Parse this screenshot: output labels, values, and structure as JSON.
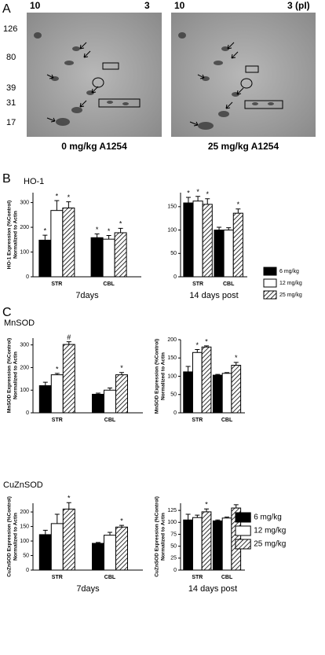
{
  "panel_labels": [
    "A",
    "B",
    "C"
  ],
  "gel": {
    "pi_labels": [
      "10",
      "3",
      "10",
      "3 (pI)"
    ],
    "mw_labels": [
      "126",
      "80",
      "39",
      "31",
      "17"
    ],
    "captions": [
      "0 mg/kg A1254",
      "25 mg/kg A1254"
    ]
  },
  "chart_data": [
    {
      "type": "bar",
      "title": "HO-1",
      "ylabel": [
        "HO-1 Expression (%Control)",
        "Normalized to Actin"
      ],
      "xlabel": "7days",
      "categories": [
        "STR",
        "CBL"
      ],
      "ylim": [
        0,
        340
      ],
      "yticks": [
        0,
        100,
        200,
        300
      ],
      "series": [
        {
          "name": "6 mg/kg",
          "color": "#000000",
          "values": [
            148,
            158
          ],
          "errors": [
            20,
            15
          ],
          "sig": [
            "*",
            "*"
          ]
        },
        {
          "name": "12 mg/kg",
          "color": "#ffffff",
          "values": [
            268,
            152
          ],
          "errors": [
            40,
            15
          ],
          "sig": [
            "*",
            "*"
          ]
        },
        {
          "name": "25 mg/kg",
          "color": "#ffffff",
          "hatch": true,
          "values": [
            278,
            178
          ],
          "errors": [
            25,
            18
          ],
          "sig": [
            "*",
            "*"
          ]
        }
      ]
    },
    {
      "type": "bar",
      "xlabel": "14 days post",
      "legend": true,
      "categories": [
        "STR",
        "CBL"
      ],
      "ylim": [
        0,
        180
      ],
      "yticks": [
        0,
        50,
        100,
        150
      ],
      "series": [
        {
          "name": "6 mg/kg",
          "color": "#000000",
          "values": [
            158,
            100
          ],
          "errors": [
            12,
            6
          ],
          "sig": [
            "*",
            null
          ]
        },
        {
          "name": "12 mg/kg",
          "color": "#ffffff",
          "values": [
            162,
            100
          ],
          "errors": [
            10,
            5
          ],
          "sig": [
            "*",
            null
          ]
        },
        {
          "name": "25 mg/kg",
          "color": "#ffffff",
          "hatch": true,
          "values": [
            155,
            136
          ],
          "errors": [
            12,
            9
          ],
          "sig": [
            "*",
            "*"
          ]
        }
      ]
    },
    {
      "type": "bar",
      "title": "MnSOD",
      "ylabel": [
        "MnSOD Expression (%Control)",
        "Normalized to Actin"
      ],
      "categories": [
        "STR",
        "CBL"
      ],
      "ylim": [
        0,
        330
      ],
      "yticks": [
        0,
        100,
        200,
        300
      ],
      "series": [
        {
          "name": "6 mg/kg",
          "color": "#000000",
          "values": [
            120,
            82
          ],
          "errors": [
            15,
            5
          ],
          "sig": [
            null,
            null
          ]
        },
        {
          "name": "12 mg/kg",
          "color": "#ffffff",
          "values": [
            168,
            100
          ],
          "errors": [
            6,
            10
          ],
          "sig": [
            "*",
            null
          ]
        },
        {
          "name": "25 mg/kg",
          "color": "#ffffff",
          "hatch": true,
          "values": [
            302,
            168
          ],
          "errors": [
            12,
            10
          ],
          "sig": [
            "#",
            "*"
          ]
        }
      ]
    },
    {
      "type": "bar",
      "ylabel": [
        "MnSOD Expression (%Control)",
        "Normalized to Actin"
      ],
      "categories": [
        "STR",
        "CBL"
      ],
      "ylim": [
        0,
        200
      ],
      "yticks": [
        0,
        50,
        100,
        150,
        200
      ],
      "series": [
        {
          "name": "6 mg/kg",
          "color": "#000000",
          "values": [
            112,
            103
          ],
          "errors": [
            15,
            2
          ],
          "sig": [
            null,
            null
          ]
        },
        {
          "name": "12 mg/kg",
          "color": "#ffffff",
          "values": [
            165,
            108
          ],
          "errors": [
            8,
            2
          ],
          "sig": [
            "*",
            null
          ]
        },
        {
          "name": "25 mg/kg",
          "color": "#ffffff",
          "hatch": true,
          "values": [
            180,
            130
          ],
          "errors": [
            3,
            8
          ],
          "sig": [
            "*",
            "*"
          ]
        }
      ]
    },
    {
      "type": "bar",
      "title": "CuZnSOD",
      "ylabel": [
        "CuZnSOD Expression (%Control)",
        "Normalized to Actin"
      ],
      "xlabel": "7days",
      "categories": [
        "STR",
        "CBL"
      ],
      "ylim": [
        0,
        230
      ],
      "yticks": [
        0,
        50,
        100,
        150,
        200
      ],
      "series": [
        {
          "name": "6 mg/kg",
          "color": "#000000",
          "values": [
            122,
            92
          ],
          "errors": [
            15,
            3
          ],
          "sig": [
            null,
            null
          ]
        },
        {
          "name": "12 mg/kg",
          "color": "#ffffff",
          "values": [
            160,
            120
          ],
          "errors": [
            32,
            10
          ],
          "sig": [
            null,
            null
          ]
        },
        {
          "name": "25 mg/kg",
          "color": "#ffffff",
          "hatch": true,
          "values": [
            210,
            148
          ],
          "errors": [
            22,
            6
          ],
          "sig": [
            "*",
            "*"
          ]
        }
      ]
    },
    {
      "type": "bar",
      "ylabel": [
        "CuZnSOD Expression (%Control)",
        "Normalized to Actin"
      ],
      "xlabel": "14 days post",
      "legend": true,
      "categories": [
        "STR",
        "CBL"
      ],
      "ylim": [
        0,
        140
      ],
      "yticks": [
        0,
        25,
        50,
        75,
        100,
        125
      ],
      "series": [
        {
          "name": "6 mg/kg",
          "color": "#000000",
          "values": [
            105,
            103
          ],
          "errors": [
            12,
            2
          ],
          "sig": [
            null,
            null
          ]
        },
        {
          "name": "12 mg/kg",
          "color": "#ffffff",
          "values": [
            110,
            109
          ],
          "errors": [
            5,
            2
          ],
          "sig": [
            null,
            null
          ]
        },
        {
          "name": "25 mg/kg",
          "color": "#ffffff",
          "hatch": true,
          "values": [
            122,
            130
          ],
          "errors": [
            6,
            7
          ],
          "sig": [
            "*",
            null
          ]
        }
      ]
    }
  ]
}
